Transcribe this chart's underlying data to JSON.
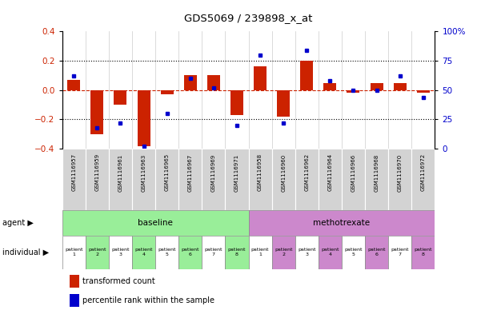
{
  "title": "GDS5069 / 239898_x_at",
  "gsm_labels": [
    "GSM1116957",
    "GSM1116959",
    "GSM1116961",
    "GSM1116963",
    "GSM1116965",
    "GSM1116967",
    "GSM1116969",
    "GSM1116971",
    "GSM1116958",
    "GSM1116960",
    "GSM1116962",
    "GSM1116964",
    "GSM1116966",
    "GSM1116968",
    "GSM1116970",
    "GSM1116972"
  ],
  "bar_values": [
    0.07,
    -0.3,
    -0.1,
    -0.38,
    -0.03,
    0.1,
    0.1,
    -0.17,
    0.16,
    -0.18,
    0.2,
    0.05,
    -0.02,
    0.05,
    0.05,
    -0.02
  ],
  "percentile_values": [
    62,
    18,
    22,
    2,
    30,
    60,
    52,
    20,
    80,
    22,
    84,
    58,
    50,
    50,
    62,
    44
  ],
  "bar_color": "#cc2200",
  "dot_color": "#0000cc",
  "ylim_left": [
    -0.4,
    0.4
  ],
  "ylim_right": [
    0,
    100
  ],
  "yticks_left": [
    -0.4,
    -0.2,
    0.0,
    0.2,
    0.4
  ],
  "yticks_right": [
    0,
    25,
    50,
    75,
    100
  ],
  "ytick_labels_right": [
    "0",
    "25",
    "50",
    "75",
    "100%"
  ],
  "baseline_indices": [
    0,
    1,
    2,
    3,
    4,
    5,
    6,
    7
  ],
  "methotrexate_indices": [
    8,
    9,
    10,
    11,
    12,
    13,
    14,
    15
  ],
  "baseline_color": "#99ee99",
  "methotrexate_color": "#cc88cc",
  "agent_label_baseline": "baseline",
  "agent_label_methotrexate": "methotrexate",
  "legend_bar_label": "transformed count",
  "legend_dot_label": "percentile rank within the sample",
  "agent_row_label": "agent",
  "individual_row_label": "individual",
  "bar_width": 0.55,
  "ind_colors_baseline": [
    "#ffffff",
    "#99ee99"
  ],
  "ind_colors_methotrexate": [
    "#ffffff",
    "#cc88cc"
  ]
}
